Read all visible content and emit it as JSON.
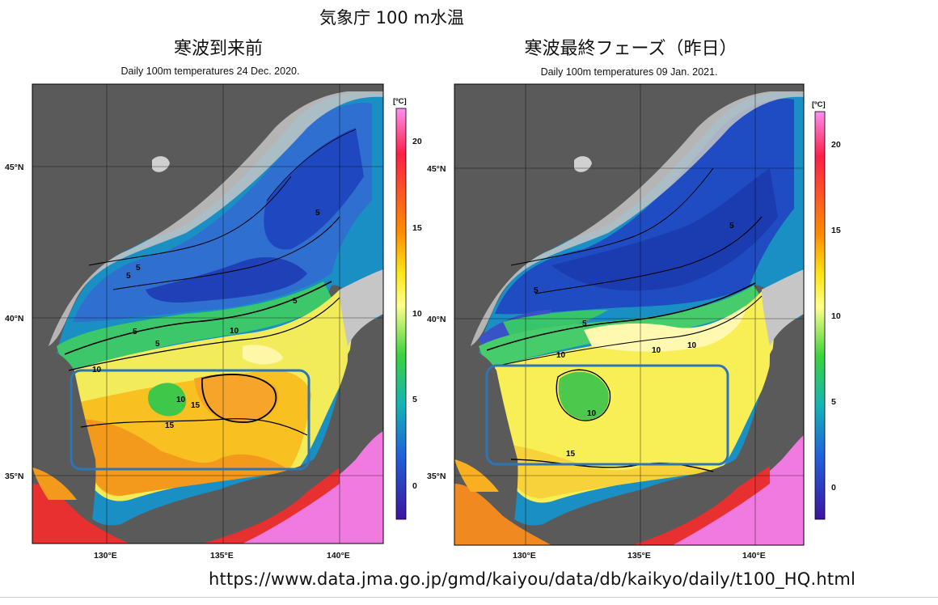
{
  "header": {
    "title": "気象庁 100 m水温"
  },
  "panels": [
    {
      "title": "寒波到来前",
      "subtitle": "Daily 100m temperatures 24 Dec. 2020.",
      "lat_labels": [
        "45°N",
        "40°N",
        "35°N"
      ],
      "lon_labels": [
        "130°E",
        "135°E",
        "140°E"
      ],
      "contour_labels": [
        "5",
        "5",
        "5",
        "5",
        "5",
        "5",
        "10",
        "10",
        "10",
        "15",
        "15"
      ],
      "highlight_color": "#2e75b6"
    },
    {
      "title": "寒波最終フェーズ（昨日）",
      "subtitle": "Daily 100m temperatures 09 Jan. 2021.",
      "lat_labels": [
        "45°N",
        "40°N",
        "35°N"
      ],
      "lon_labels": [
        "130°E",
        "135°E",
        "140°E"
      ],
      "contour_labels": [
        "5",
        "5",
        "5",
        "10",
        "10",
        "10",
        "10",
        "15"
      ],
      "highlight_color": "#2e75b6"
    }
  ],
  "colorbar": {
    "unit": "[ºC]",
    "ticks": [
      "20",
      "15",
      "10",
      "5",
      "0"
    ],
    "colors": [
      "#ff8ef0",
      "#ff1e46",
      "#ff8c00",
      "#ffe614",
      "#ffff8c",
      "#3cd23c",
      "#14b4b4",
      "#1e64dc",
      "#3c14a0"
    ]
  },
  "source": {
    "url": "https://www.data.jma.go.jp/gmd/kaiyou/data/db/kaikyo/daily/t100_HQ.html"
  }
}
